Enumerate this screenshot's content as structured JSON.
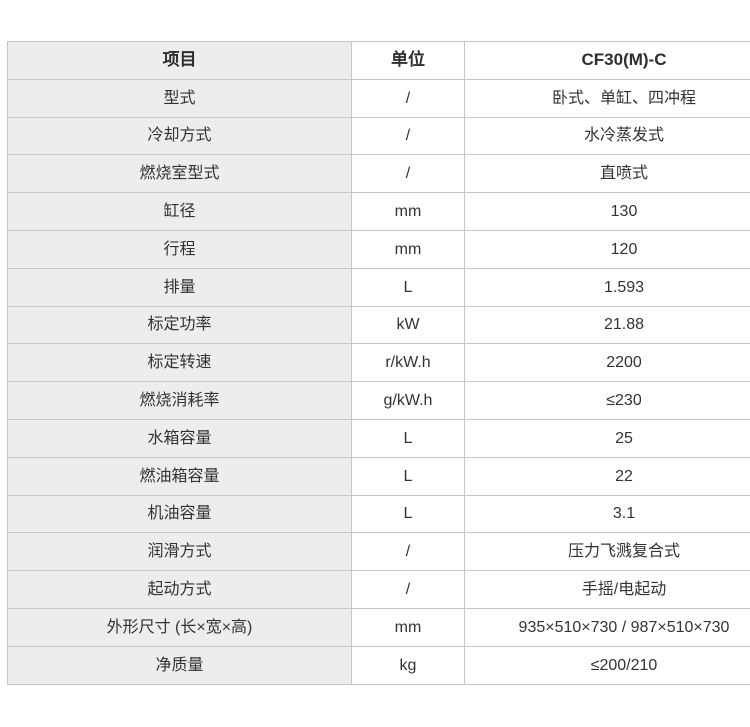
{
  "table": {
    "header": {
      "item": "项目",
      "unit": "单位",
      "model": "CF30(M)-C"
    },
    "rows": [
      {
        "item": "型式",
        "unit": "/",
        "value": "卧式、单缸、四冲程"
      },
      {
        "item": "冷却方式",
        "unit": "/",
        "value": "水冷蒸发式"
      },
      {
        "item": "燃烧室型式",
        "unit": "/",
        "value": "直喷式"
      },
      {
        "item": "缸径",
        "unit": "mm",
        "value": "130"
      },
      {
        "item": "行程",
        "unit": "mm",
        "value": "120"
      },
      {
        "item": "排量",
        "unit": "L",
        "value": "1.593"
      },
      {
        "item": "标定功率",
        "unit": "kW",
        "value": "21.88"
      },
      {
        "item": "标定转速",
        "unit": "r/kW.h",
        "value": "2200"
      },
      {
        "item": "燃烧消耗率",
        "unit": "g/kW.h",
        "value": "≤230"
      },
      {
        "item": "水箱容量",
        "unit": "L",
        "value": "25"
      },
      {
        "item": "燃油箱容量",
        "unit": "L",
        "value": "22"
      },
      {
        "item": "机油容量",
        "unit": "L",
        "value": "3.1"
      },
      {
        "item": "润滑方式",
        "unit": "/",
        "value": "压力飞溅复合式"
      },
      {
        "item": "起动方式",
        "unit": "/",
        "value": "手摇/电起动"
      },
      {
        "item": "外形尺寸 (长×宽×高)",
        "unit": "mm",
        "value": "935×510×730 / 987×510×730"
      },
      {
        "item": "净质量",
        "unit": "kg",
        "value": "≤200/210"
      }
    ],
    "colors": {
      "first_column_bg": "#ededed",
      "cell_bg": "#ffffff",
      "border": "#c7c7c7",
      "text": "#333333"
    }
  }
}
